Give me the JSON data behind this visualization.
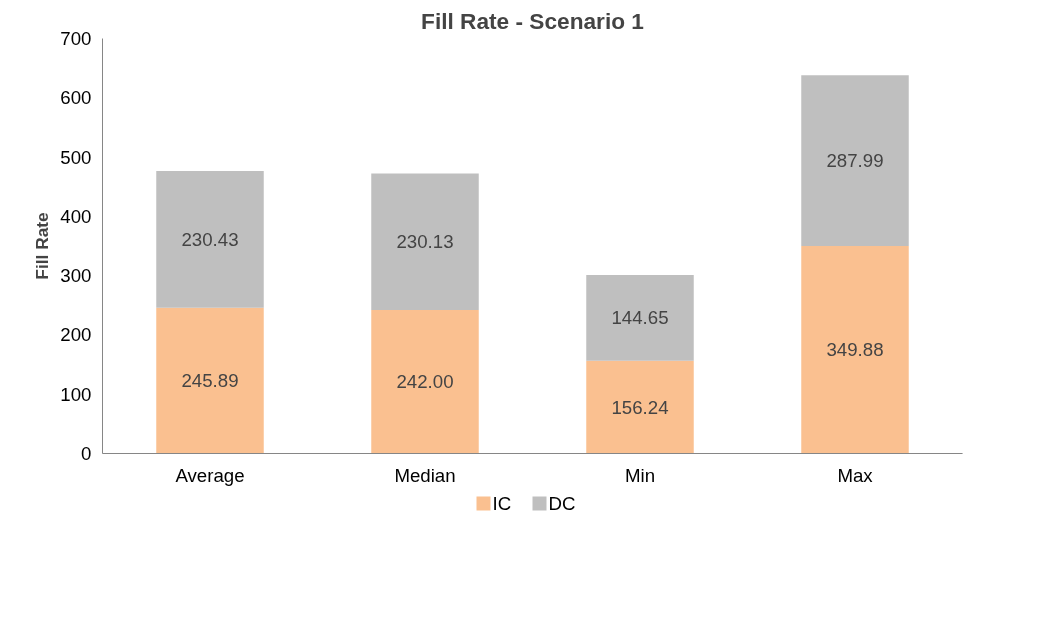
{
  "chart_data": {
    "type": "bar",
    "title": "Fill Rate - Scenario 1",
    "ylabel": "Fill Rate",
    "categories": [
      "Average",
      "Median",
      "Min",
      "Max"
    ],
    "stacked": true,
    "series": [
      {
        "name": "IC",
        "color": "#fac090",
        "values": [
          245.89,
          242.0,
          156.24,
          349.88
        ],
        "value_labels": [
          "245.89",
          "242.00",
          "156.24",
          "349.88"
        ]
      },
      {
        "name": "DC",
        "color": "#bfbfbf",
        "values": [
          230.43,
          230.13,
          144.65,
          287.99
        ],
        "value_labels": [
          "230.43",
          "230.13",
          "144.65",
          "287.99"
        ]
      }
    ],
    "ylim": [
      0,
      700
    ],
    "yticks": [
      0,
      100,
      200,
      300,
      400,
      500,
      600,
      700
    ],
    "grid": false,
    "legend": "bottom"
  }
}
